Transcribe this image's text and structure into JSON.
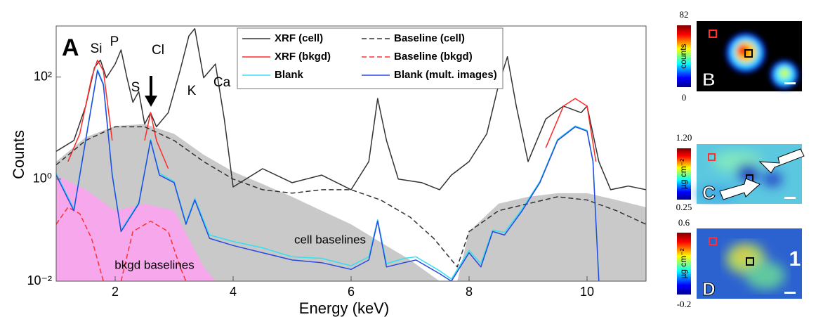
{
  "chart_data": {
    "type": "line",
    "panel_letter": "A",
    "x_label": "Energy (keV)",
    "y_label": "Counts",
    "xlim": [
      1,
      11
    ],
    "xticks": [
      2,
      4,
      6,
      8,
      10
    ],
    "ylim": [
      0.01,
      1000
    ],
    "yscale": "log",
    "yticks": [
      {
        "value": 0.01,
        "label": "10⁻²"
      },
      {
        "value": 1,
        "label": "10⁰"
      },
      {
        "value": 100,
        "label": "10²"
      }
    ],
    "legend_position": "top",
    "annotations": [
      "Si",
      "P",
      "S",
      "Cl",
      "K",
      "Ca"
    ],
    "areas": [
      {
        "label": "cell baselines",
        "color": "#c9c9c9",
        "x": [
          1.0,
          1.5,
          2.0,
          2.5,
          3.0,
          3.5,
          4.0,
          4.5,
          5.0,
          5.5,
          6.0,
          6.5,
          7.0,
          7.5,
          7.8,
          8.0,
          8.5,
          9.0,
          9.5,
          10.0,
          10.5,
          11.0
        ],
        "values": [
          2.2,
          6.6,
          11,
          12,
          7.7,
          3,
          1.4,
          0.8,
          0.45,
          0.24,
          0.13,
          0.058,
          0.026,
          0.01,
          0.01,
          0.094,
          0.33,
          0.45,
          0.53,
          0.53,
          0.39,
          0.28
        ]
      },
      {
        "label": "bkgd baselines",
        "color": "#f7a8ec",
        "x": [
          1.0,
          1.5,
          2.0,
          2.5,
          3.0,
          3.5,
          3.7
        ],
        "values": [
          1.2,
          0.62,
          0.24,
          0.33,
          0.24,
          0.019,
          0.01
        ]
      }
    ],
    "series": [
      {
        "name": "XRF (cell)",
        "color": "#333333",
        "dash": false,
        "x": [
          1.0,
          1.3,
          1.5,
          1.65,
          1.75,
          1.85,
          2.0,
          2.1,
          2.2,
          2.3,
          2.4,
          2.5,
          2.6,
          2.7,
          2.9,
          3.1,
          3.25,
          3.35,
          3.5,
          3.7,
          3.85,
          4.0,
          4.5,
          5.0,
          5.5,
          6.0,
          6.3,
          6.45,
          6.6,
          6.8,
          7.2,
          7.5,
          7.7,
          8.0,
          8.3,
          8.5,
          8.65,
          8.8,
          9.0,
          9.3,
          9.6,
          9.9,
          10.0,
          10.2,
          10.4,
          10.7,
          11.0
        ],
        "values": [
          3.5,
          5.7,
          27,
          155,
          215,
          97,
          180,
          340,
          97,
          32,
          52,
          12,
          20,
          10.6,
          20,
          133,
          640,
          890,
          97,
          180,
          15,
          0.7,
          1.6,
          0.85,
          1.2,
          0.62,
          2.2,
          38,
          5.7,
          1,
          0.85,
          0.62,
          1.2,
          2.2,
          7.7,
          70,
          250,
          27,
          2.2,
          15,
          27,
          20,
          27,
          2.2,
          0.62,
          0.73,
          0.62
        ]
      },
      {
        "name": "XRF (bkgd)",
        "color": "#ff2a2a",
        "dash": false,
        "x": [
          1.2,
          1.4,
          1.6,
          1.7,
          1.8,
          1.95,
          2.2,
          2.5,
          2.6,
          2.7,
          2.9,
          5.0,
          9.3,
          9.6,
          9.8,
          10.0,
          10.15
        ],
        "values": [
          2.2,
          7.7,
          97,
          215,
          133,
          5.7,
          null,
          5.7,
          20,
          5.7,
          1.6,
          null,
          4.1,
          27,
          38,
          27,
          2.2
        ]
      },
      {
        "name": "Blank",
        "color": "#33e0f0",
        "dash": false,
        "x": [
          1.0,
          1.3,
          1.5,
          1.7,
          1.8,
          1.95,
          2.1,
          2.4,
          2.6,
          2.75,
          3.0,
          3.2,
          3.35,
          3.6,
          4.0,
          4.5,
          5.0,
          5.5,
          6.0,
          6.3,
          6.45,
          6.6,
          6.9,
          7.1,
          7.5,
          7.7,
          8.0,
          8.2,
          8.4,
          8.6,
          8.9,
          9.2,
          9.5,
          9.8,
          10.0,
          10.1,
          10.2
        ],
        "values": [
          1.3,
          0.26,
          6,
          140,
          75,
          1.3,
          0.1,
          0.35,
          6,
          1.3,
          0.9,
          0.14,
          0.42,
          0.08,
          0.06,
          0.045,
          0.03,
          0.028,
          0.02,
          0.03,
          0.16,
          0.022,
          0.028,
          0.03,
          0.016,
          0.011,
          0.04,
          0.022,
          0.1,
          0.09,
          0.26,
          0.9,
          6,
          11,
          9,
          2.3,
          0.011
        ]
      },
      {
        "name": "Baseline (cell)",
        "color": "#333333",
        "dash": true,
        "x": [
          1.0,
          1.5,
          2.0,
          2.5,
          3.0,
          3.5,
          4.0,
          4.5,
          5.0,
          5.5,
          6.0,
          6.5,
          7.0,
          7.4,
          7.8,
          8.0,
          8.5,
          9.0,
          9.5,
          10.0,
          10.5,
          11.0
        ],
        "values": [
          1.9,
          5.7,
          10.6,
          10.6,
          5.7,
          2.2,
          1,
          0.62,
          0.53,
          0.62,
          0.62,
          0.39,
          0.18,
          0.069,
          0.019,
          0.094,
          0.24,
          0.33,
          0.45,
          0.39,
          0.24,
          0.13
        ]
      },
      {
        "name": "Baseline (bkgd)",
        "color": "#ff3030",
        "dash": true,
        "x": [
          1.0,
          1.2,
          1.4,
          1.6,
          1.8,
          1.95,
          2.1,
          2.3,
          2.6,
          2.9,
          3.1,
          3.2
        ],
        "values": [
          0.13,
          0.28,
          0.21,
          0.069,
          0.01,
          null,
          0.01,
          0.094,
          0.15,
          0.094,
          0.019,
          0.01
        ]
      },
      {
        "name": "Blank  (mult. images)",
        "color": "#2848e0",
        "dash": false,
        "x": [
          1.0,
          1.3,
          1.5,
          1.7,
          1.8,
          1.95,
          2.1,
          2.4,
          2.6,
          2.75,
          3.0,
          3.2,
          3.35,
          3.6,
          4.0,
          4.5,
          5.0,
          5.5,
          6.0,
          6.3,
          6.45,
          6.6,
          6.9,
          7.1,
          7.5,
          7.7,
          8.0,
          8.2,
          8.4,
          8.6,
          8.9,
          9.2,
          9.5,
          9.8,
          10.0,
          10.1,
          10.2
        ],
        "values": [
          1.2,
          0.24,
          5.7,
          133,
          70,
          1.2,
          0.094,
          0.33,
          5.7,
          1.2,
          0.85,
          0.13,
          0.39,
          0.069,
          0.05,
          0.036,
          0.026,
          0.023,
          0.017,
          0.026,
          0.15,
          0.019,
          0.023,
          0.026,
          0.014,
          0.01,
          0.036,
          0.019,
          0.094,
          0.08,
          0.24,
          0.85,
          5.7,
          10.6,
          8.7,
          2.2,
          0.01
        ]
      }
    ]
  },
  "panels": [
    {
      "letter": "B",
      "cbar_max": "82",
      "cbar_min": "0",
      "cbar_label": "counts"
    },
    {
      "letter": "C",
      "cbar_max": "1.20",
      "cbar_min": "0.25",
      "cbar_label": "µg cm⁻²"
    },
    {
      "letter": "D",
      "cbar_max": "0.6",
      "cbar_min": "-0.2",
      "cbar_label": "µg cm⁻²",
      "note": "1"
    }
  ]
}
